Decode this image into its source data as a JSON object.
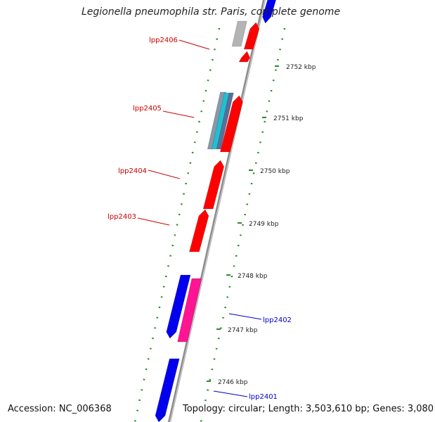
{
  "header": {
    "title": "Legionella pneumophila str. Paris, complete genome"
  },
  "footer": {
    "accession": "Accession: NC_006368",
    "summary": "Topology: circular; Length: 3,503,610 bp; Genes: 3,080"
  },
  "colors": {
    "backbone": "#8c8c8c",
    "tick": "#2d8a2d",
    "gene_red": "#ff0000",
    "gene_blue": "#0000ee",
    "gene_pink": "#ff1493",
    "gene_gray": "#b4b4b4",
    "gene_cyan": "#20c0d0",
    "label_red": "#cc0000",
    "label_blue": "#0000cc"
  },
  "ruler": {
    "unit": "kbp",
    "ticks": [
      "2746 kbp",
      "2747 kbp",
      "2748 kbp",
      "2749 kbp",
      "2750 kbp",
      "2751 kbp",
      "2752 kbp"
    ]
  },
  "gene_labels": [
    {
      "text": "lpp2406",
      "color": "red"
    },
    {
      "text": "lpp2405",
      "color": "red"
    },
    {
      "text": "lpp2404",
      "color": "red"
    },
    {
      "text": "lpp2403",
      "color": "red"
    },
    {
      "text": "lpp2402",
      "color": "blue"
    },
    {
      "text": "lpp2401",
      "color": "blue"
    }
  ]
}
